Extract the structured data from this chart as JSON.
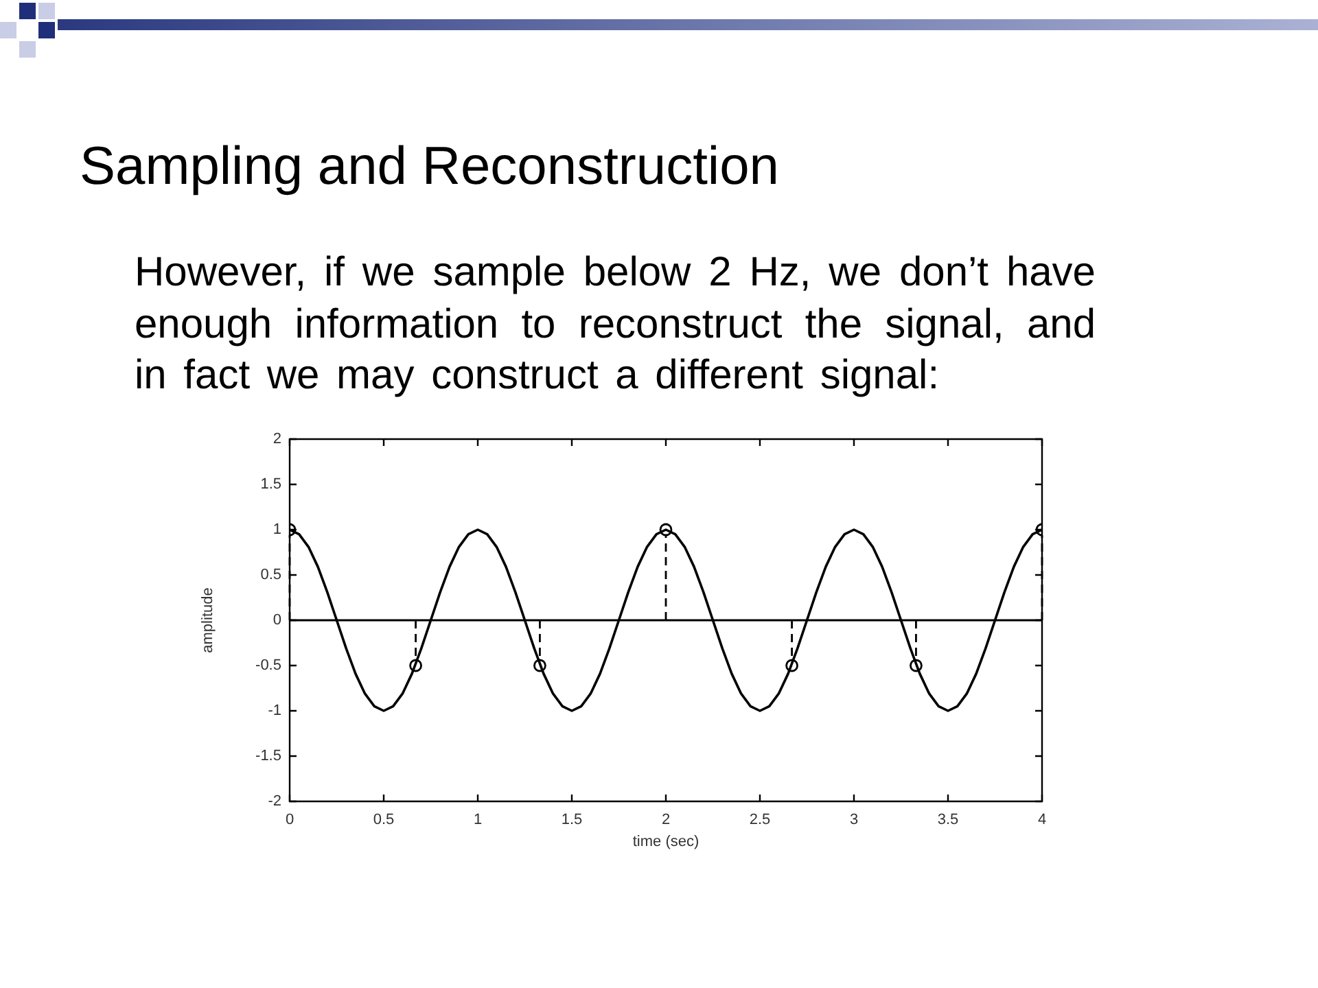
{
  "chart_data": {
    "type": "line",
    "title": "Sampling and Reconstruction",
    "subtitle": "However, if we sample below 2 Hz, we don’t have enough information to reconstruct the signal, and in fact we may construct a different signal:",
    "xlabel": "time (sec)",
    "ylabel": "amplitude",
    "xlim": [
      0,
      4
    ],
    "xticks": [
      0,
      0.5,
      1,
      1.5,
      2,
      2.5,
      3,
      3.5,
      4
    ],
    "ylim": [
      -2,
      2
    ],
    "yticks": [
      -2,
      -1.5,
      -1,
      -0.5,
      0,
      0.5,
      1,
      1.5,
      2
    ],
    "grid": false,
    "ref_lines": [
      {
        "axis": "y",
        "value": 0,
        "color": "#000000"
      }
    ],
    "series": [
      {
        "color": "#000000",
        "marker": "none",
        "line_style": "solid",
        "x": [
          0,
          0.05,
          0.1,
          0.15,
          0.2,
          0.25,
          0.3,
          0.35,
          0.4,
          0.45,
          0.5,
          0.55,
          0.6,
          0.65,
          0.7,
          0.75,
          0.8,
          0.85,
          0.9,
          0.95,
          1,
          1.05,
          1.1,
          1.15,
          1.2,
          1.25,
          1.3,
          1.35,
          1.4,
          1.45,
          1.5,
          1.55,
          1.6,
          1.65,
          1.7,
          1.75,
          1.8,
          1.85,
          1.9,
          1.95,
          2,
          2.05,
          2.1,
          2.15,
          2.2,
          2.25,
          2.3,
          2.35,
          2.4,
          2.45,
          2.5,
          2.55,
          2.6,
          2.65,
          2.7,
          2.75,
          2.8,
          2.85,
          2.9,
          2.95,
          3,
          3.05,
          3.1,
          3.15,
          3.2,
          3.25,
          3.3,
          3.35,
          3.4,
          3.45,
          3.5,
          3.55,
          3.6,
          3.65,
          3.7,
          3.75,
          3.8,
          3.85,
          3.9,
          3.95,
          4
        ],
        "values": [
          1,
          0.95,
          0.81,
          0.59,
          0.31,
          0,
          -0.31,
          -0.59,
          -0.81,
          -0.95,
          -1,
          -0.95,
          -0.81,
          -0.59,
          -0.31,
          0,
          0.31,
          0.59,
          0.81,
          0.95,
          1,
          0.95,
          0.81,
          0.59,
          0.31,
          0,
          -0.31,
          -0.59,
          -0.81,
          -0.95,
          -1,
          -0.95,
          -0.81,
          -0.59,
          -0.31,
          0,
          0.31,
          0.59,
          0.81,
          0.95,
          1,
          0.95,
          0.81,
          0.59,
          0.31,
          0,
          -0.31,
          -0.59,
          -0.81,
          -0.95,
          -1,
          -0.95,
          -0.81,
          -0.59,
          -0.31,
          0,
          0.31,
          0.59,
          0.81,
          0.95,
          1,
          0.95,
          0.81,
          0.59,
          0.31,
          0,
          -0.31,
          -0.59,
          -0.81,
          -0.95,
          -1,
          -0.95,
          -0.81,
          -0.59,
          -0.31,
          0,
          0.31,
          0.59,
          0.81,
          0.95,
          1
        ]
      },
      {
        "type": "lollipop",
        "color": "#000000",
        "marker": "circle",
        "line_style": "dashed",
        "x": [
          0,
          0.67,
          1.33,
          2,
          2.67,
          3.33,
          4
        ],
        "values": [
          1,
          -0.5,
          -0.5,
          1,
          -0.5,
          -0.5,
          1
        ]
      }
    ]
  }
}
